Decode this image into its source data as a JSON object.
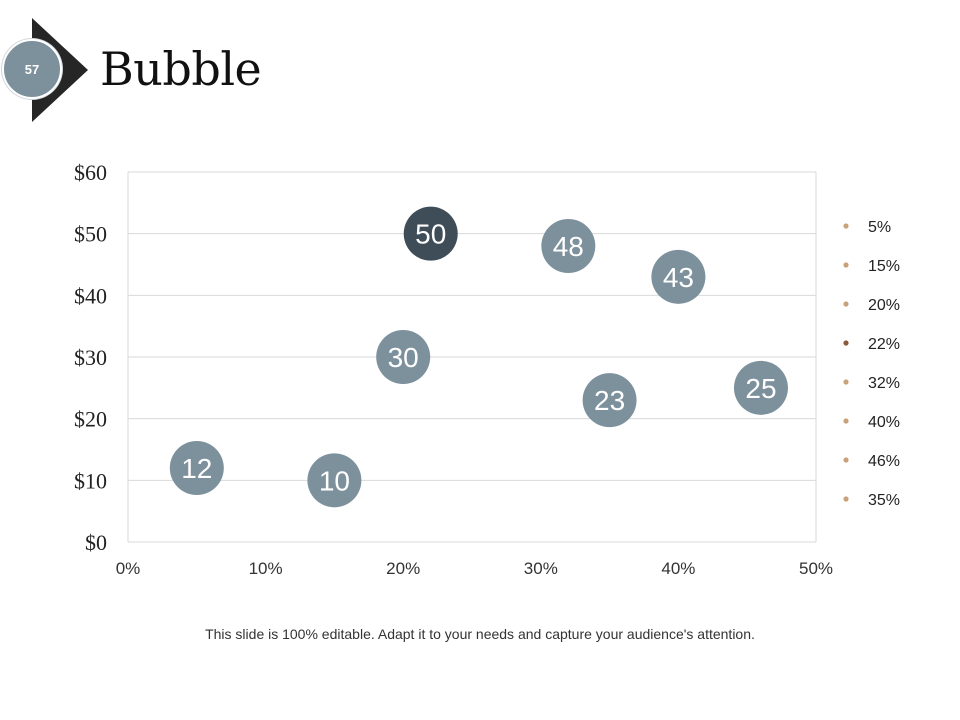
{
  "slide": {
    "page_number": "57",
    "title": "Bubble",
    "footer": "This slide is 100% editable. Adapt it to your needs and capture your audience's attention."
  },
  "colors": {
    "bubble": "#7d919d",
    "bubble_highlight": "#3e4d58",
    "legend_marker": "#c8a27a",
    "legend_marker_highlight": "#8a5a3a",
    "grid": "#d9d9d9",
    "chevron": "#262626"
  },
  "chart_data": {
    "type": "scatter",
    "subtype": "bubble",
    "title": "",
    "xlabel": "",
    "ylabel": "",
    "xlim": [
      0,
      0.5
    ],
    "ylim": [
      0,
      60
    ],
    "x_ticks": [
      "0%",
      "10%",
      "20%",
      "30%",
      "40%",
      "50%"
    ],
    "y_ticks": [
      "$0",
      "$10",
      "$20",
      "$30",
      "$40",
      "$50",
      "$60"
    ],
    "grid": true,
    "legend_position": "right",
    "series": [
      {
        "name": "5%",
        "x": 0.05,
        "y": 12,
        "label": "12",
        "highlight": false
      },
      {
        "name": "15%",
        "x": 0.15,
        "y": 10,
        "label": "10",
        "highlight": false
      },
      {
        "name": "20%",
        "x": 0.2,
        "y": 30,
        "label": "30",
        "highlight": false
      },
      {
        "name": "22%",
        "x": 0.22,
        "y": 50,
        "label": "50",
        "highlight": true
      },
      {
        "name": "32%",
        "x": 0.32,
        "y": 48,
        "label": "48",
        "highlight": false
      },
      {
        "name": "40%",
        "x": 0.4,
        "y": 43,
        "label": "43",
        "highlight": false
      },
      {
        "name": "46%",
        "x": 0.46,
        "y": 25,
        "label": "25",
        "highlight": false
      },
      {
        "name": "35%",
        "x": 0.35,
        "y": 23,
        "label": "23",
        "highlight": false
      }
    ]
  }
}
